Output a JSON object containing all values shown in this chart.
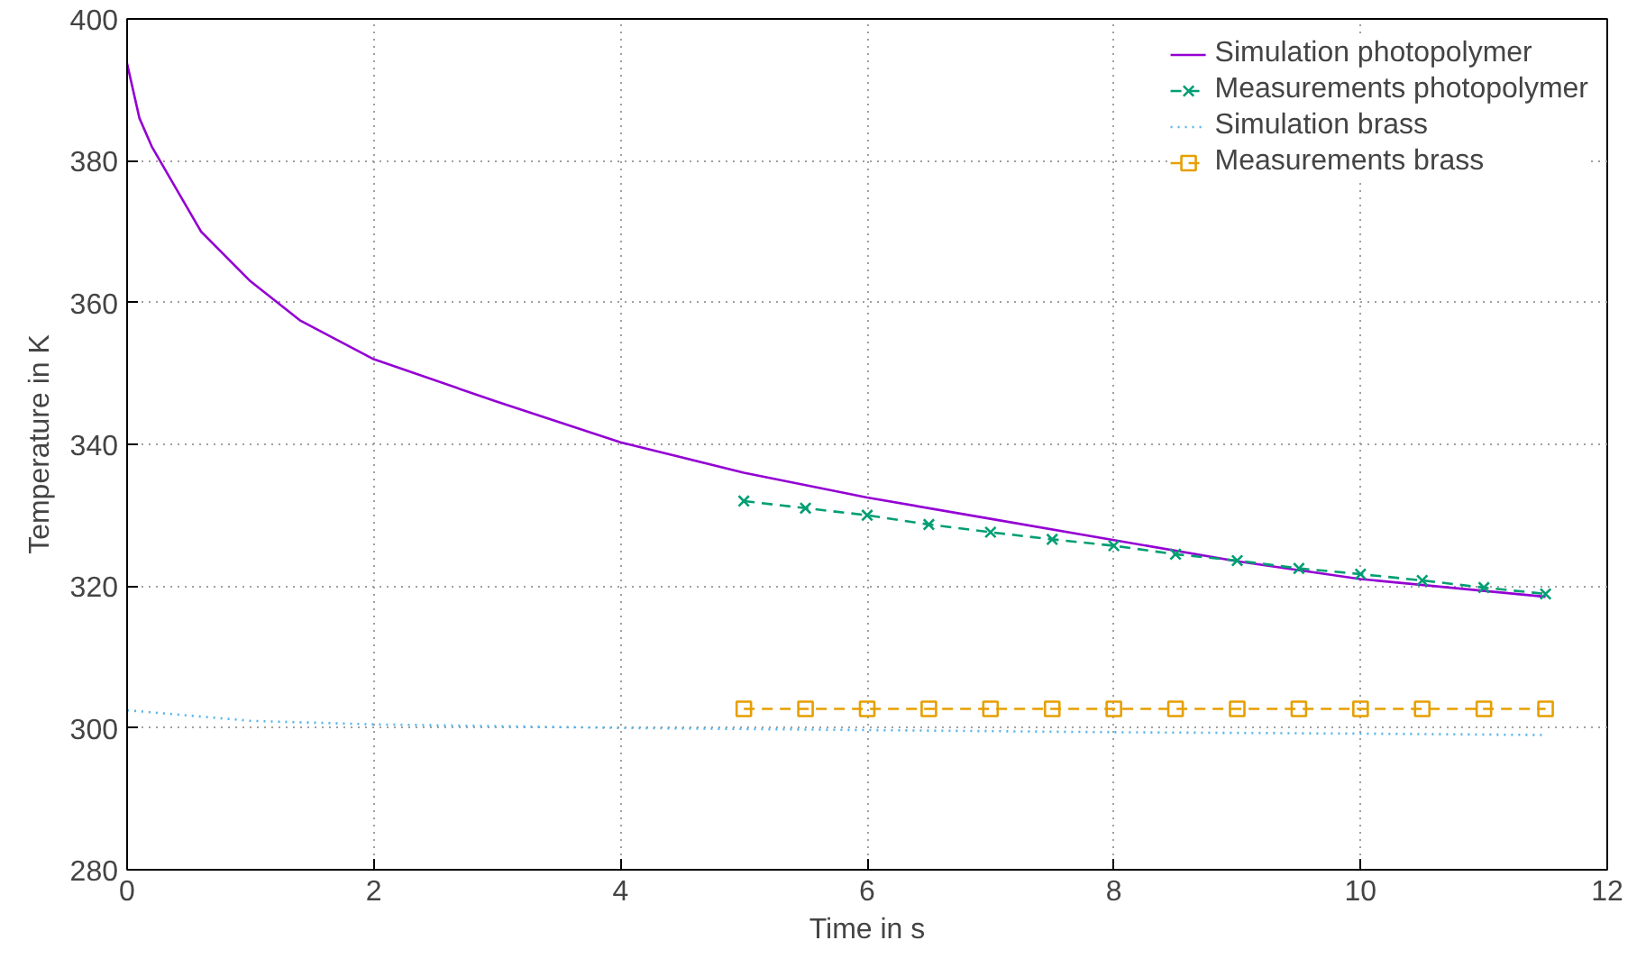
{
  "chart_data": {
    "type": "line",
    "xlabel": "Time in s",
    "ylabel": "Temperature in K",
    "xlim": [
      0,
      12
    ],
    "ylim": [
      280,
      400
    ],
    "xticks": [
      0,
      2,
      4,
      6,
      8,
      10,
      12
    ],
    "yticks": [
      280,
      300,
      320,
      340,
      360,
      380,
      400
    ],
    "grid": true,
    "legend": "top right",
    "series": [
      {
        "name": "Simulation photopolymer",
        "color": "#9400d3",
        "line_style": "solid",
        "marker": "none",
        "x": [
          0,
          0.1,
          0.2,
          0.4,
          0.6,
          1.0,
          1.4,
          2,
          3,
          4,
          5,
          6,
          7,
          8,
          9,
          10,
          11.5
        ],
        "values": [
          393.7,
          386,
          382,
          376,
          370,
          363,
          357.5,
          352,
          346,
          340.3,
          336,
          332.5,
          329.5,
          326.5,
          323.5,
          321,
          318.5
        ]
      },
      {
        "name": "Measurements photopolymer",
        "color": "#009e73",
        "line_style": "dashed",
        "marker": "cross",
        "x": [
          5,
          5.5,
          6,
          6.5,
          7,
          7.5,
          8,
          8.5,
          9,
          9.5,
          10,
          10.5,
          11,
          11.5
        ],
        "values": [
          332,
          331,
          330,
          328.7,
          327.6,
          326.6,
          325.7,
          324.5,
          323.6,
          322.5,
          321.7,
          320.8,
          319.8,
          318.9
        ]
      },
      {
        "name": "Simulation brass",
        "color": "#56b4e9",
        "line_style": "dotted",
        "marker": "none",
        "x": [
          0,
          1,
          2,
          4,
          6,
          8,
          10,
          11.5
        ],
        "values": [
          302.5,
          301,
          300.5,
          300,
          299.7,
          299.4,
          299.2,
          299
        ]
      },
      {
        "name": "Measurements brass",
        "color": "#e69f00",
        "line_style": "dashed",
        "marker": "square",
        "x": [
          5,
          5.5,
          6,
          6.5,
          7,
          7.5,
          8,
          8.5,
          9,
          9.5,
          10,
          10.5,
          11,
          11.5
        ],
        "values": [
          302.7,
          302.7,
          302.7,
          302.7,
          302.7,
          302.7,
          302.7,
          302.7,
          302.7,
          302.7,
          302.7,
          302.7,
          302.7,
          302.7
        ]
      }
    ]
  }
}
